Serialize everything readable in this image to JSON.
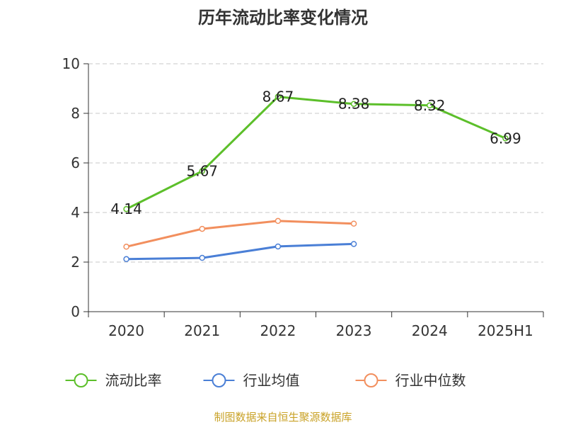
{
  "chart_data": {
    "type": "line",
    "title": "历年流动比率变化情况",
    "categories": [
      "2020",
      "2021",
      "2022",
      "2023",
      "2024",
      "2025H1"
    ],
    "ylim": [
      0,
      10
    ],
    "yticks": [
      0,
      2,
      4,
      6,
      8,
      10
    ],
    "grid": "horizontal-dashed",
    "legend_position": "bottom",
    "series": [
      {
        "name": "流动比率",
        "color": "#5cbf2a",
        "values": [
          4.14,
          5.67,
          8.67,
          8.38,
          8.32,
          6.99
        ],
        "show_labels": true
      },
      {
        "name": "行业均值",
        "color": "#4a7fd6",
        "values": [
          2.12,
          2.17,
          2.63,
          2.73,
          null,
          null
        ],
        "show_labels": false
      },
      {
        "name": "行业中位数",
        "color": "#f28f5e",
        "values": [
          2.62,
          3.34,
          3.66,
          3.55,
          null,
          null
        ],
        "show_labels": false
      }
    ],
    "source": "制图数据来自恒生聚源数据库"
  }
}
